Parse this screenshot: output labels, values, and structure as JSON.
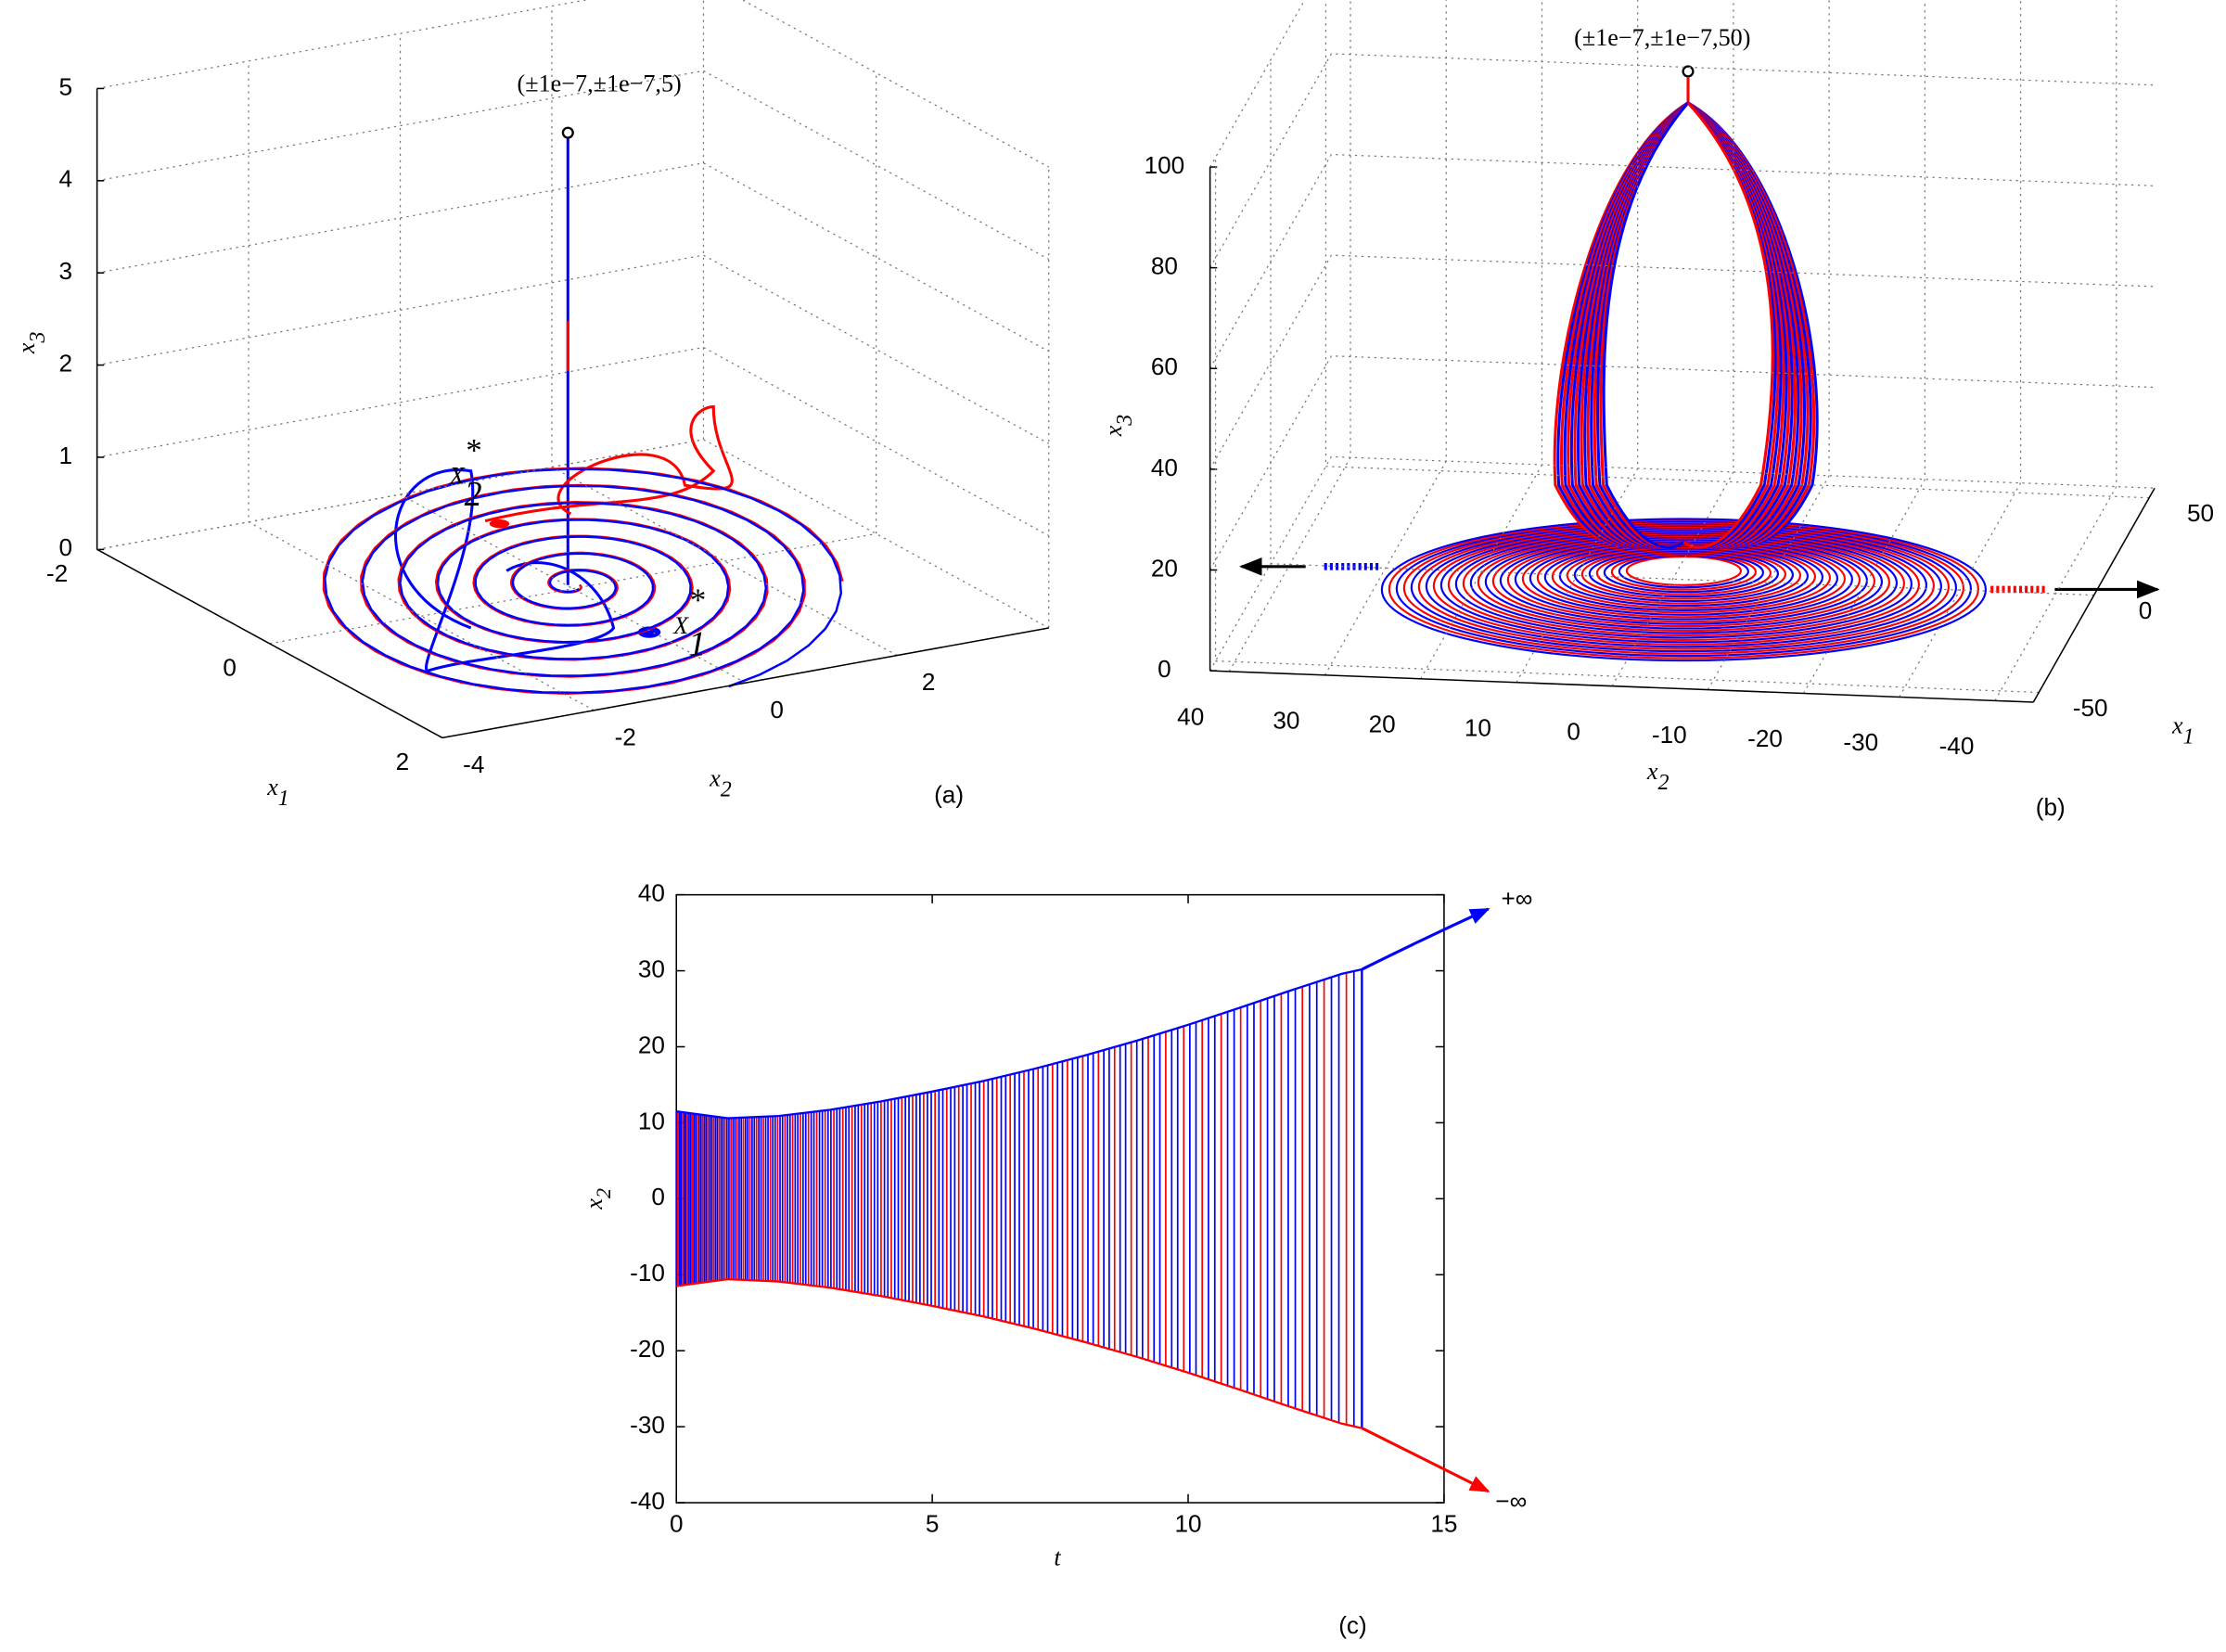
{
  "chart_data": [
    {
      "type": "line3d",
      "panel_label": "(a)",
      "annotation": "(±1e−7,±1e−7,5)",
      "x1label": {
        "base": "x",
        "sub": "1"
      },
      "x2label": {
        "base": "x",
        "sub": "2"
      },
      "x3label": {
        "base": "x",
        "sub": "3"
      },
      "x1lim": [
        -2,
        2
      ],
      "x1ticks": [
        -2,
        0,
        2
      ],
      "x2lim": [
        -4,
        4
      ],
      "x2ticks": [
        -4,
        -2,
        0,
        2
      ],
      "x3lim": [
        0,
        5
      ],
      "x3ticks": [
        0,
        1,
        2,
        3,
        4,
        5
      ],
      "points": [
        {
          "base": "X",
          "sub": "2",
          "sup": "*"
        },
        {
          "base": "X",
          "sub": "1",
          "sup": "*"
        }
      ],
      "grid": true
    },
    {
      "type": "line3d",
      "panel_label": "(b)",
      "annotation": "(±1e−7,±1e−7,50)",
      "x1label": {
        "base": "x",
        "sub": "1"
      },
      "x2label": {
        "base": "x",
        "sub": "2"
      },
      "x3label": {
        "base": "x",
        "sub": "3"
      },
      "x1lim": [
        -55,
        55
      ],
      "x1ticks": [
        -50,
        0,
        50
      ],
      "x2lim": [
        42,
        -44
      ],
      "x2ticks": [
        40,
        30,
        20,
        10,
        0,
        -10,
        -20,
        -30,
        -40
      ],
      "x3lim": [
        0,
        100
      ],
      "x3ticks": [
        0,
        20,
        40,
        60,
        80,
        100
      ],
      "grid": true
    },
    {
      "type": "line",
      "panel_label": "(c)",
      "xlabel": "t",
      "ylabel": {
        "base": "x",
        "sub": "2"
      },
      "x": [
        0,
        1,
        2,
        3,
        4,
        5,
        6,
        7,
        8,
        9,
        10,
        11,
        12,
        13,
        13.4
      ],
      "series": [
        {
          "color": "#0000ff",
          "values": [
            11.5,
            10.6,
            10.9,
            11.7,
            12.8,
            14.1,
            15.5,
            17.1,
            18.9,
            20.8,
            22.9,
            25.1,
            27.4,
            29.6,
            30.2
          ]
        },
        {
          "color": "#ff0000",
          "values": [
            -11.5,
            -10.6,
            -10.9,
            -11.7,
            -12.8,
            -14.1,
            -15.5,
            -17.1,
            -18.9,
            -20.8,
            -22.9,
            -25.1,
            -27.4,
            -29.6,
            -30.2
          ]
        }
      ],
      "annotations": [
        "+∞",
        "−∞"
      ],
      "xlim": [
        0,
        15
      ],
      "xticks": [
        0,
        5,
        10,
        15
      ],
      "ylim": [
        -40,
        40
      ],
      "yticks": [
        -40,
        -30,
        -20,
        -10,
        0,
        10,
        20,
        30,
        40
      ]
    }
  ]
}
